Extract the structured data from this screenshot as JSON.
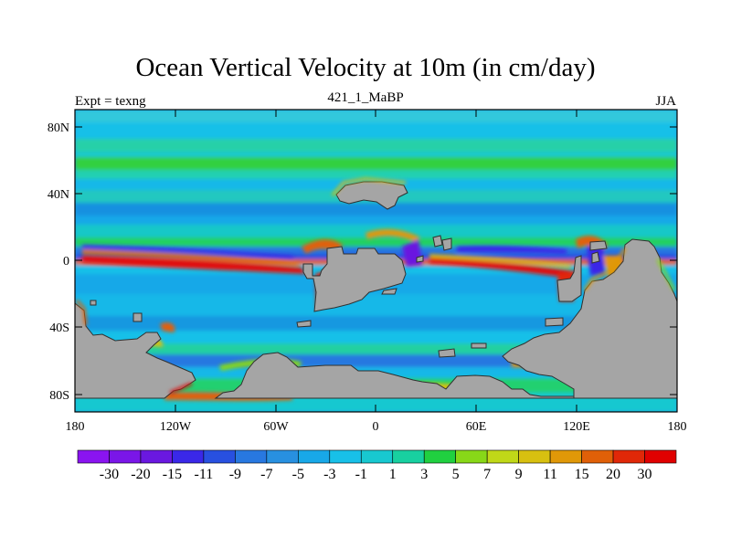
{
  "title": "Ocean Vertical Velocity at 10m (in cm/day)",
  "subtitle_left": "Expt = texng",
  "subtitle_center": "421_1_MaBP",
  "subtitle_right": "JJA",
  "lat_ticks": [
    "80N",
    "40N",
    "0",
    "40S",
    "80S"
  ],
  "lon_ticks": [
    "180",
    "120W",
    "60W",
    "0",
    "60E",
    "120E",
    "180"
  ],
  "colorbar": {
    "labels": [
      "-30",
      "-20",
      "-15",
      "-11",
      "-9",
      "-7",
      "-5",
      "-3",
      "-1",
      "1",
      "3",
      "5",
      "7",
      "9",
      "11",
      "15",
      "20",
      "30"
    ],
    "colors": [
      "#8a14f0",
      "#7a16e8",
      "#6a18e0",
      "#3a28e8",
      "#2850e0",
      "#2878e0",
      "#2890e0",
      "#18a8e8",
      "#18c0e8",
      "#18c8d0",
      "#18d0a0",
      "#20d040",
      "#88d818",
      "#c0d818",
      "#d8c010",
      "#e09808",
      "#e06008",
      "#e02808",
      "#e00000"
    ]
  },
  "colors": {
    "land": "#a5a5a5",
    "coast": "#303030",
    "background_ocean": "#1ea4ea"
  }
}
